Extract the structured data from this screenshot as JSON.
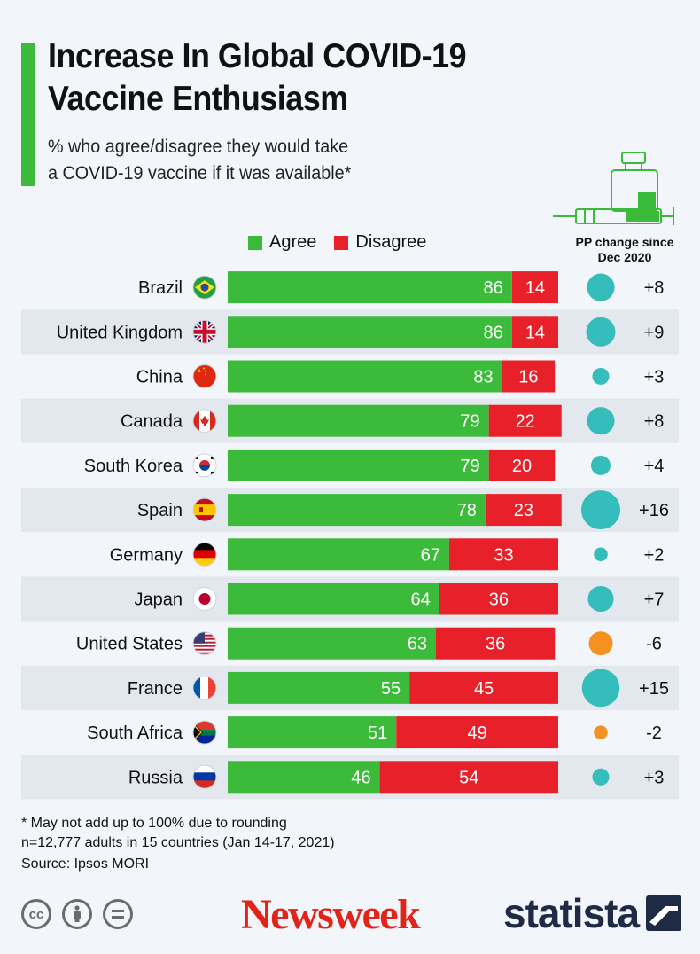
{
  "header": {
    "title": "Increase In Global COVID-19\nVaccine Enthusiasm",
    "subtitle": "% who agree/disagree they would take\na COVID-19 vaccine if it was available*"
  },
  "legend": {
    "agree_label": "Agree",
    "disagree_label": "Disagree"
  },
  "pp_header": "PP change since\nDec 2020",
  "colors": {
    "agree": "#3cbb3a",
    "disagree": "#e8202a",
    "pp_positive": "#35bdbb",
    "pp_negative": "#f39221",
    "stripe": "#e3e8ef"
  },
  "chart_data": {
    "type": "bar",
    "orientation": "horizontal",
    "stacked": true,
    "title": "Increase In Global COVID-19 Vaccine Enthusiasm",
    "categories": [
      "Brazil",
      "United Kingdom",
      "China",
      "Canada",
      "South Korea",
      "Spain",
      "Germany",
      "Japan",
      "United States",
      "France",
      "South Africa",
      "Russia"
    ],
    "series": [
      {
        "name": "Agree",
        "values": [
          86,
          86,
          83,
          79,
          79,
          78,
          67,
          64,
          63,
          55,
          51,
          46
        ]
      },
      {
        "name": "Disagree",
        "values": [
          14,
          14,
          16,
          22,
          20,
          23,
          33,
          36,
          36,
          45,
          49,
          54
        ]
      }
    ],
    "pp_change": {
      "name": "PP change since Dec 2020",
      "values": [
        8,
        9,
        3,
        8,
        4,
        16,
        2,
        7,
        -6,
        15,
        -2,
        3
      ],
      "labels": [
        "+8",
        "+9",
        "+3",
        "+8",
        "+4",
        "+16",
        "+2",
        "+7",
        "-6",
        "+15",
        "-2",
        "+3"
      ]
    },
    "xlim": [
      0,
      100
    ]
  },
  "footer": {
    "note1": "* May not add up to 100% due to rounding",
    "note2": "n=12,777 adults in 15 countries (Jan 14-17, 2021)",
    "source": "Source: Ipsos MORI",
    "newsweek": "Newsweek",
    "statista": "statista"
  }
}
